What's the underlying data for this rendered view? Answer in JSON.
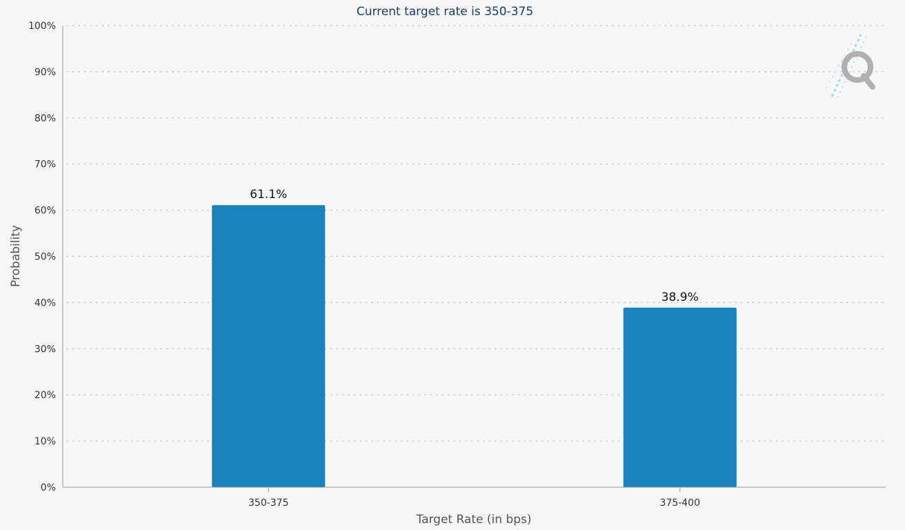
{
  "chart_data": {
    "type": "bar",
    "title": "Current target rate is 350-375",
    "xlabel": "Target Rate (in bps)",
    "ylabel": "Probability",
    "categories": [
      "350-375",
      "375-400"
    ],
    "values": [
      61.1,
      38.9
    ],
    "data_labels": [
      "61.1%",
      "38.9%"
    ],
    "y_ticks": [
      "0%",
      "10%",
      "20%",
      "30%",
      "40%",
      "50%",
      "60%",
      "70%",
      "80%",
      "90%",
      "100%"
    ],
    "ylim": [
      0,
      100
    ],
    "grid": true,
    "legend": "none",
    "bar_color": "#1a82bd"
  },
  "watermark": {
    "icon": "quikstrike-q-logo-icon",
    "letter_color": "#b0b0b0",
    "streak_color": "#a8dbe8"
  }
}
